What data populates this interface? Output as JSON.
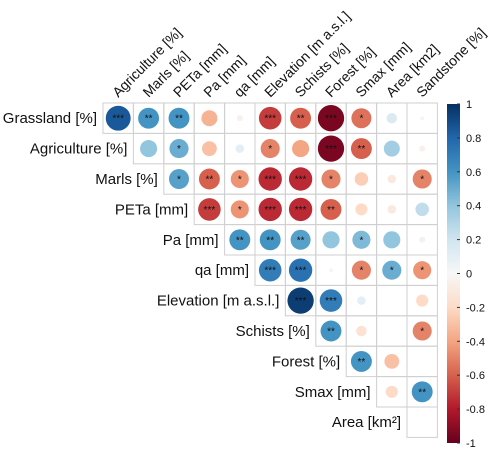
{
  "chart_data": {
    "type": "heatmap",
    "style": "correlation-circles-upper-triangle",
    "column_labels": [
      "Agriculture [%]",
      "Marls [%]",
      "PETa [mm]",
      "Pa [mm]",
      "qa [mm]",
      "Elevation [m a.s.l.]",
      "Schists [%]",
      "Forest [%]",
      "Smax [mm]",
      "Area [km2]",
      "Sandstone [%]"
    ],
    "row_labels": [
      "Grassland [%]",
      "Agriculture [%]",
      "Marls [%]",
      "PETa [mm]",
      "Pa [mm]",
      "qa [mm]",
      "Elevation [m a.s.l.]",
      "Schists [%]",
      "Forest [%]",
      "Smax [mm]",
      "Area [km²]"
    ],
    "rows": [
      [
        {
          "r": 0.85,
          "sig": "***"
        },
        {
          "r": 0.6,
          "sig": "**"
        },
        {
          "r": 0.6,
          "sig": "**"
        },
        {
          "r": -0.35,
          "sig": ""
        },
        {
          "r": -0.05,
          "sig": ""
        },
        {
          "r": -0.7,
          "sig": "***"
        },
        {
          "r": -0.6,
          "sig": "**"
        },
        {
          "r": -0.95,
          "sig": "***"
        },
        {
          "r": -0.55,
          "sig": "*"
        },
        {
          "r": 0.15,
          "sig": ""
        },
        {
          "r": -0.02,
          "sig": ""
        }
      ],
      [
        null,
        {
          "r": 0.4,
          "sig": ""
        },
        {
          "r": 0.5,
          "sig": "*"
        },
        {
          "r": -0.3,
          "sig": ""
        },
        {
          "r": 0.1,
          "sig": ""
        },
        {
          "r": -0.5,
          "sig": "*"
        },
        {
          "r": -0.4,
          "sig": ""
        },
        {
          "r": -0.95,
          "sig": "***"
        },
        {
          "r": -0.6,
          "sig": "**"
        },
        {
          "r": 0.35,
          "sig": ""
        },
        {
          "r": -0.05,
          "sig": ""
        }
      ],
      [
        null,
        null,
        {
          "r": 0.55,
          "sig": "*"
        },
        {
          "r": -0.6,
          "sig": "**"
        },
        {
          "r": -0.45,
          "sig": "*"
        },
        {
          "r": -0.75,
          "sig": "***"
        },
        {
          "r": -0.75,
          "sig": "***"
        },
        {
          "r": -0.5,
          "sig": "*"
        },
        {
          "r": -0.25,
          "sig": ""
        },
        {
          "r": -0.1,
          "sig": ""
        },
        {
          "r": -0.5,
          "sig": "*"
        }
      ],
      [
        null,
        null,
        null,
        {
          "r": -0.7,
          "sig": "***"
        },
        {
          "r": -0.45,
          "sig": "*"
        },
        {
          "r": -0.75,
          "sig": "***"
        },
        {
          "r": -0.75,
          "sig": "***"
        },
        {
          "r": -0.6,
          "sig": "**"
        },
        {
          "r": -0.2,
          "sig": ""
        },
        {
          "r": -0.1,
          "sig": ""
        },
        {
          "r": 0.25,
          "sig": ""
        }
      ],
      [
        null,
        null,
        null,
        null,
        {
          "r": 0.6,
          "sig": "**"
        },
        {
          "r": 0.6,
          "sig": "**"
        },
        {
          "r": 0.55,
          "sig": "**"
        },
        {
          "r": 0.4,
          "sig": ""
        },
        {
          "r": 0.45,
          "sig": "*"
        },
        {
          "r": 0.4,
          "sig": ""
        },
        {
          "r": 0.05,
          "sig": ""
        }
      ],
      [
        null,
        null,
        null,
        null,
        null,
        {
          "r": 0.7,
          "sig": "***"
        },
        {
          "r": 0.75,
          "sig": "***"
        },
        {
          "r": 0.02,
          "sig": ""
        },
        {
          "r": -0.5,
          "sig": "*"
        },
        {
          "r": 0.5,
          "sig": "*"
        },
        {
          "r": -0.45,
          "sig": "*"
        }
      ],
      [
        null,
        null,
        null,
        null,
        null,
        null,
        {
          "r": 0.95,
          "sig": "***"
        },
        {
          "r": 0.7,
          "sig": "***"
        },
        {
          "r": 0.1,
          "sig": ""
        },
        {
          "r": 0.0,
          "sig": ""
        },
        {
          "r": -0.2,
          "sig": ""
        }
      ],
      [
        null,
        null,
        null,
        null,
        null,
        null,
        null,
        {
          "r": 0.6,
          "sig": "**"
        },
        {
          "r": -0.15,
          "sig": ""
        },
        {
          "r": 0.0,
          "sig": ""
        },
        {
          "r": -0.5,
          "sig": "*"
        }
      ],
      [
        null,
        null,
        null,
        null,
        null,
        null,
        null,
        null,
        {
          "r": 0.6,
          "sig": "**"
        },
        {
          "r": -0.3,
          "sig": ""
        },
        {
          "r": 0.0,
          "sig": ""
        }
      ],
      [
        null,
        null,
        null,
        null,
        null,
        null,
        null,
        null,
        null,
        {
          "r": -0.2,
          "sig": ""
        },
        {
          "r": 0.6,
          "sig": "**"
        }
      ],
      [
        null,
        null,
        null,
        null,
        null,
        null,
        null,
        null,
        null,
        null,
        {
          "r": 0.0,
          "sig": ""
        }
      ]
    ],
    "colorbar": {
      "ticks": [
        "1",
        "0.8",
        "0.6",
        "0.4",
        "0.2",
        "0",
        "-0.2",
        "-0.4",
        "-0.6",
        "-0.8",
        "-1"
      ],
      "range": [
        -1,
        1
      ],
      "high_color": "#053061",
      "mid_color": "#f7f7f7",
      "low_color": "#67001f"
    },
    "grid": true
  }
}
